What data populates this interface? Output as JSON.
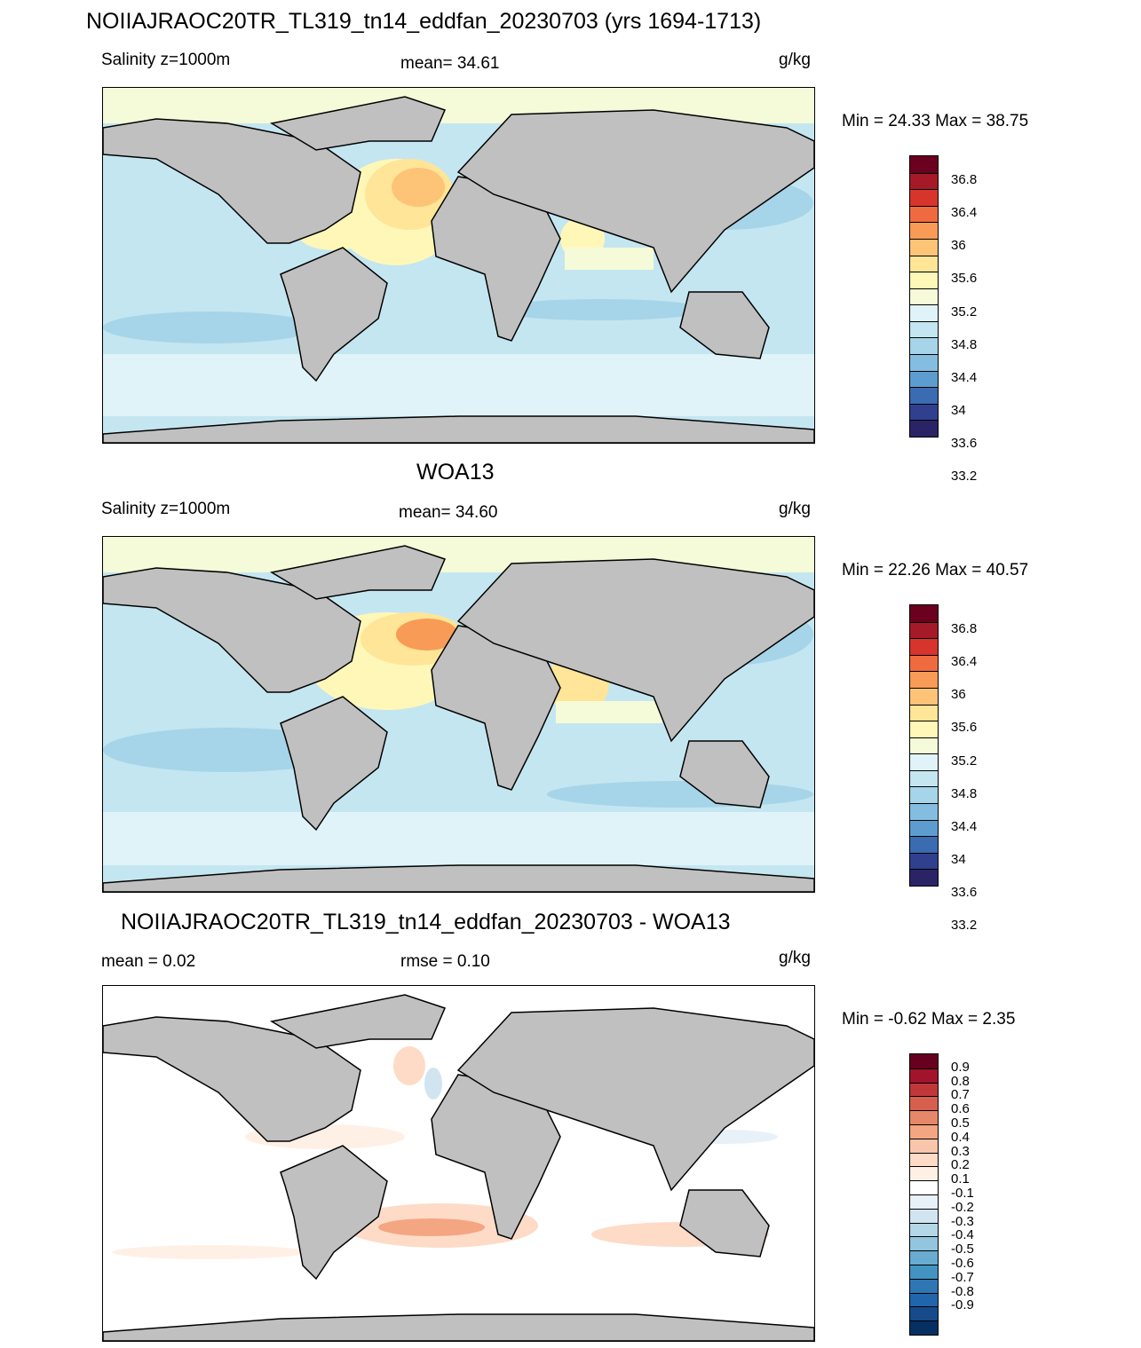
{
  "panels": [
    {
      "title": "NOIIAJRAOC20TR_TL319_tn14_eddfan_20230703 (yrs 1694-1713)",
      "left_label": "Salinity z=1000m",
      "center_label": "mean=  34.61",
      "units": "g/kg",
      "minmax": "Min =  24.33 Max =  38.75",
      "colorbar": {
        "colors": [
          "#6b001f",
          "#a51a28",
          "#d7342c",
          "#f06a3f",
          "#f89b56",
          "#fdc478",
          "#fee597",
          "#fff7b8",
          "#f5fbd8",
          "#e0f3f8",
          "#c4e6f1",
          "#a6d4e8",
          "#85bde0",
          "#5d9ccf",
          "#3b6bb0",
          "#30408f",
          "#2a2466"
        ],
        "labels": [
          "36.8",
          "36.4",
          "36",
          "35.6",
          "35.2",
          "34.8",
          "34.4",
          "34",
          "33.6",
          "33.2"
        ]
      }
    },
    {
      "title": "WOA13",
      "left_label": "Salinity z=1000m",
      "center_label": "mean=  34.60",
      "units": "g/kg",
      "minmax": "Min =  22.26 Max =  40.57",
      "colorbar": {
        "colors": [
          "#6b001f",
          "#a51a28",
          "#d7342c",
          "#f06a3f",
          "#f89b56",
          "#fdc478",
          "#fee597",
          "#fff7b8",
          "#f5fbd8",
          "#e0f3f8",
          "#c4e6f1",
          "#a6d4e8",
          "#85bde0",
          "#5d9ccf",
          "#3b6bb0",
          "#30408f",
          "#2a2466"
        ],
        "labels": [
          "36.8",
          "36.4",
          "36",
          "35.6",
          "35.2",
          "34.8",
          "34.4",
          "34",
          "33.6",
          "33.2"
        ]
      }
    },
    {
      "title": "NOIIAJRAOC20TR_TL319_tn14_eddfan_20230703 - WOA13",
      "left_label": "mean =   0.02",
      "center_label": "rmse =   0.10",
      "units": "g/kg",
      "minmax": "Min =  -0.62 Max =   2.35",
      "colorbar": {
        "colors": [
          "#67001f",
          "#a2142c",
          "#c0373a",
          "#d6604d",
          "#e58768",
          "#f4a582",
          "#f9c6ab",
          "#fddbc7",
          "#fff0e6",
          "#ffffff",
          "#e8f1f7",
          "#d1e5f0",
          "#b4d7e8",
          "#92c5de",
          "#6aabd1",
          "#4393c3",
          "#2f76b4",
          "#2166ac",
          "#174a8a",
          "#053061"
        ],
        "labels": [
          "0.9",
          "0.8",
          "0.7",
          "0.6",
          "0.5",
          "0.4",
          "0.3",
          "0.2",
          "0.1",
          "-0.1",
          "-0.2",
          "-0.3",
          "-0.4",
          "-0.5",
          "-0.6",
          "-0.7",
          "-0.8",
          "-0.9"
        ]
      }
    }
  ],
  "colors": {
    "land": "#c0c0c0",
    "ocean_panel1": "#c4e6f1",
    "ocean_panel2": "#c4e6f1",
    "ocean_panel3": "#ffffff",
    "arctic": "#f5fbd8",
    "coastline": "#000000"
  }
}
